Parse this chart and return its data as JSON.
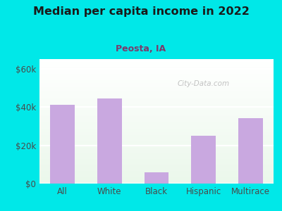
{
  "title": "Median per capita income in 2022",
  "subtitle": "Peosta, IA",
  "categories": [
    "All",
    "White",
    "Black",
    "Hispanic",
    "Multirace"
  ],
  "values": [
    41000,
    44500,
    6000,
    25000,
    34000
  ],
  "bar_color": "#c9a8e0",
  "title_color": "#1a1a1a",
  "subtitle_color": "#7b3a6b",
  "tick_label_color": "#4a4a4a",
  "bg_outer": "#00e8e8",
  "ylim": [
    0,
    65000
  ],
  "yticks": [
    0,
    20000,
    40000,
    60000
  ],
  "ytick_labels": [
    "$0",
    "$20k",
    "$40k",
    "$60k"
  ],
  "watermark": "City-Data.com"
}
